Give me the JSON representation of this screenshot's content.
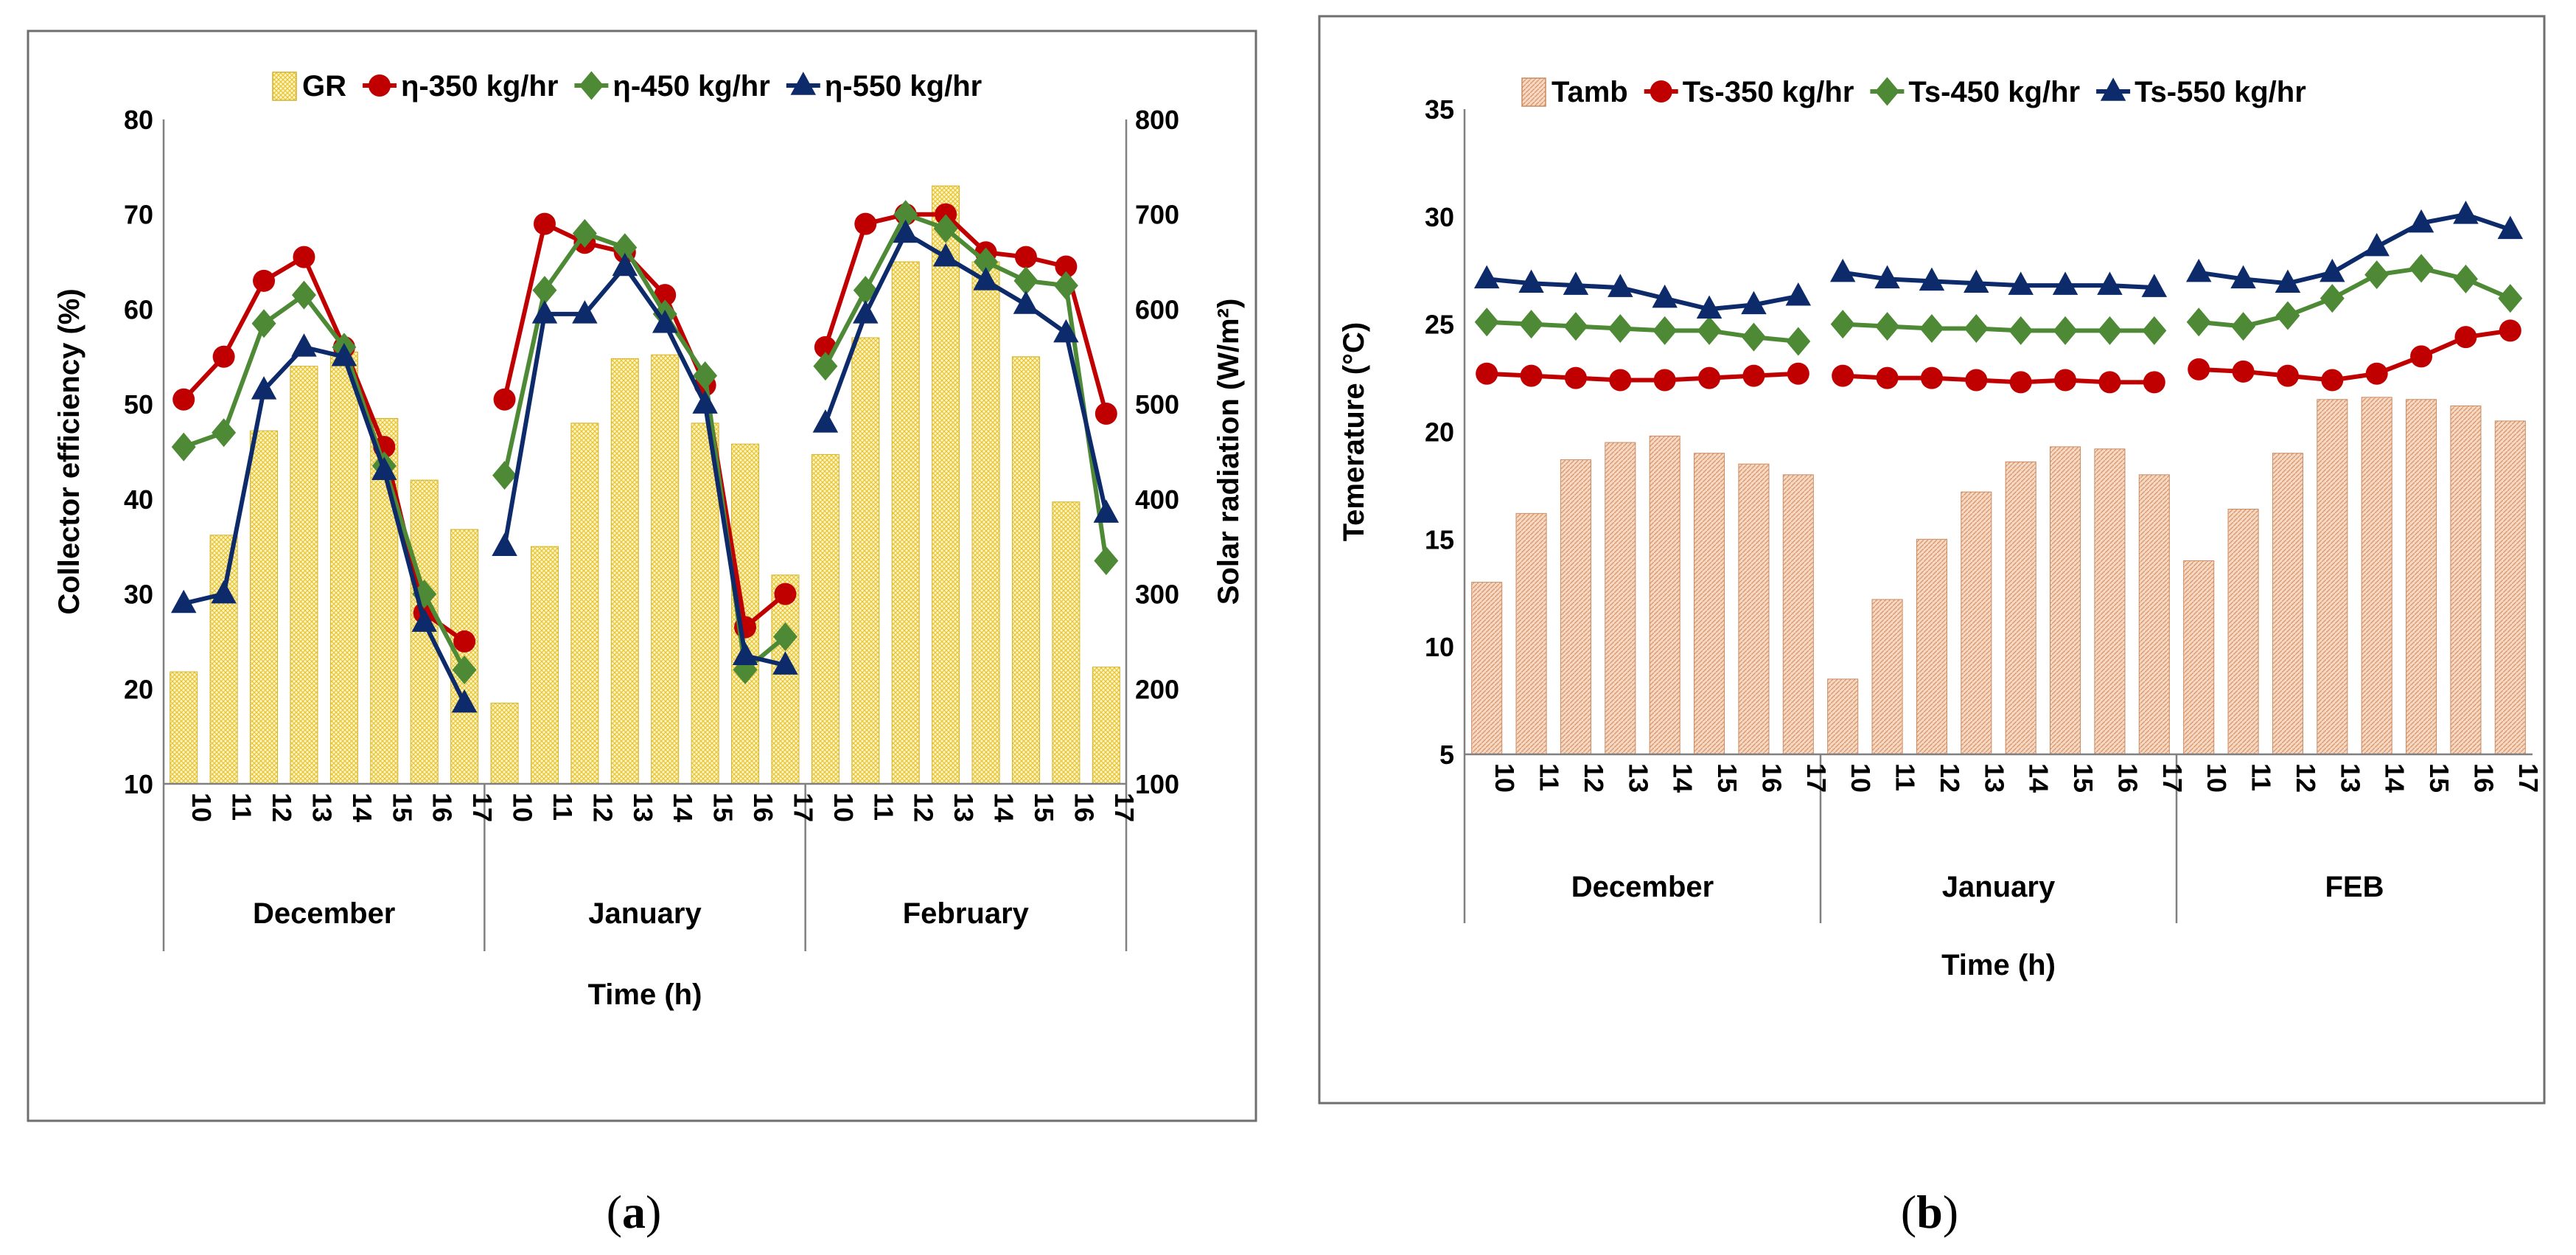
{
  "figure": {
    "captions": [
      {
        "letter": "a"
      },
      {
        "letter": "b"
      }
    ]
  },
  "chart_data": [
    {
      "type": "bar+line",
      "caption": "a",
      "xlabel": "Time  (h)",
      "ylabel_left": "Collector efficiency (%)",
      "ylabel_right": "Solar radiation (W/m²)",
      "ylim_left": [
        10,
        80
      ],
      "ylim_right": [
        100,
        800
      ],
      "yticks_left": [
        10,
        20,
        30,
        40,
        50,
        60,
        70,
        80
      ],
      "yticks_right": [
        100,
        200,
        300,
        400,
        500,
        600,
        700,
        800
      ],
      "groups": [
        "December",
        "January",
        "February"
      ],
      "hours": [
        "10",
        "11",
        "12",
        "13",
        "14",
        "15",
        "16",
        "17"
      ],
      "bar_series": {
        "name": "GR",
        "axis": "right",
        "values": [
          [
            218,
            362,
            472,
            540,
            555,
            485,
            420,
            368
          ],
          [
            185,
            350,
            480,
            548,
            552,
            480,
            458,
            320
          ],
          [
            447,
            570,
            650,
            730,
            650,
            550,
            397,
            223
          ]
        ]
      },
      "line_series": [
        {
          "name": "η-350 kg/hr",
          "color": "#c00000",
          "marker": "circle",
          "values": [
            [
              50.5,
              55,
              63,
              65.5,
              56,
              45.5,
              28,
              25
            ],
            [
              50.5,
              69,
              67,
              66,
              61.5,
              52,
              26.5,
              30
            ],
            [
              56,
              69,
              70,
              70,
              66,
              65.5,
              64.5,
              49
            ]
          ]
        },
        {
          "name": "η-450 kg/hr",
          "color": "#4e8a35",
          "marker": "diamond",
          "values": [
            [
              45.5,
              47,
              58.5,
              61.5,
              56,
              43.5,
              30,
              22
            ],
            [
              42.5,
              62,
              68,
              66.5,
              59.5,
              53,
              22,
              25.5
            ],
            [
              54,
              62,
              70,
              68.5,
              65,
              63,
              62.5,
              33.5
            ]
          ]
        },
        {
          "name": "η-550 kg/hr",
          "color": "#0d2b6b",
          "marker": "triangle",
          "values": [
            [
              29,
              30,
              51.5,
              56,
              55,
              43,
              27,
              18.5
            ],
            [
              35,
              59.5,
              59.5,
              64.5,
              58.5,
              50,
              23.5,
              22.5
            ],
            [
              48,
              59.5,
              68,
              65.5,
              63,
              60.5,
              57.5,
              38.5
            ]
          ]
        }
      ]
    },
    {
      "type": "bar+line",
      "caption": "b",
      "xlabel": "Time  (h)",
      "ylabel": "Temerature  (°C)",
      "ylim": [
        5,
        35
      ],
      "yticks": [
        5,
        10,
        15,
        20,
        25,
        30,
        35
      ],
      "groups": [
        "December",
        "January",
        "FEB"
      ],
      "hours": [
        "10",
        "11",
        "12",
        "13",
        "14",
        "15",
        "16",
        "17"
      ],
      "bar_series": {
        "name": "Tamb",
        "values": [
          [
            13,
            16.2,
            18.7,
            19.5,
            19.8,
            19,
            18.5,
            18
          ],
          [
            8.5,
            12.2,
            15,
            17.2,
            18.6,
            19.3,
            19.2,
            18
          ],
          [
            14,
            16.4,
            19,
            21.5,
            21.6,
            21.5,
            21.2,
            20.5
          ]
        ]
      },
      "line_series": [
        {
          "name": "Ts-350 kg/hr",
          "color": "#c00000",
          "marker": "circle",
          "values": [
            [
              22.7,
              22.6,
              22.5,
              22.4,
              22.4,
              22.5,
              22.6,
              22.7
            ],
            [
              22.6,
              22.5,
              22.5,
              22.4,
              22.3,
              22.4,
              22.3,
              22.3
            ],
            [
              22.9,
              22.8,
              22.6,
              22.4,
              22.7,
              23.5,
              24.4,
              24.7
            ]
          ]
        },
        {
          "name": "Ts-450 kg/hr",
          "color": "#4e8a35",
          "marker": "diamond",
          "values": [
            [
              25.1,
              25,
              24.9,
              24.8,
              24.7,
              24.7,
              24.4,
              24.2
            ],
            [
              25,
              24.9,
              24.8,
              24.8,
              24.7,
              24.7,
              24.7,
              24.7
            ],
            [
              25.1,
              24.9,
              25.4,
              26.2,
              27.3,
              27.6,
              27.1,
              26.2
            ]
          ]
        },
        {
          "name": "Ts-550 kg/hr",
          "color": "#0d2b6b",
          "marker": "triangle",
          "values": [
            [
              27.1,
              26.9,
              26.8,
              26.7,
              26.2,
              25.7,
              25.9,
              26.3
            ],
            [
              27.4,
              27.1,
              27,
              26.9,
              26.8,
              26.8,
              26.8,
              26.7
            ],
            [
              27.4,
              27.1,
              26.9,
              27.4,
              28.6,
              29.7,
              30.1,
              29.4
            ]
          ]
        }
      ]
    }
  ]
}
